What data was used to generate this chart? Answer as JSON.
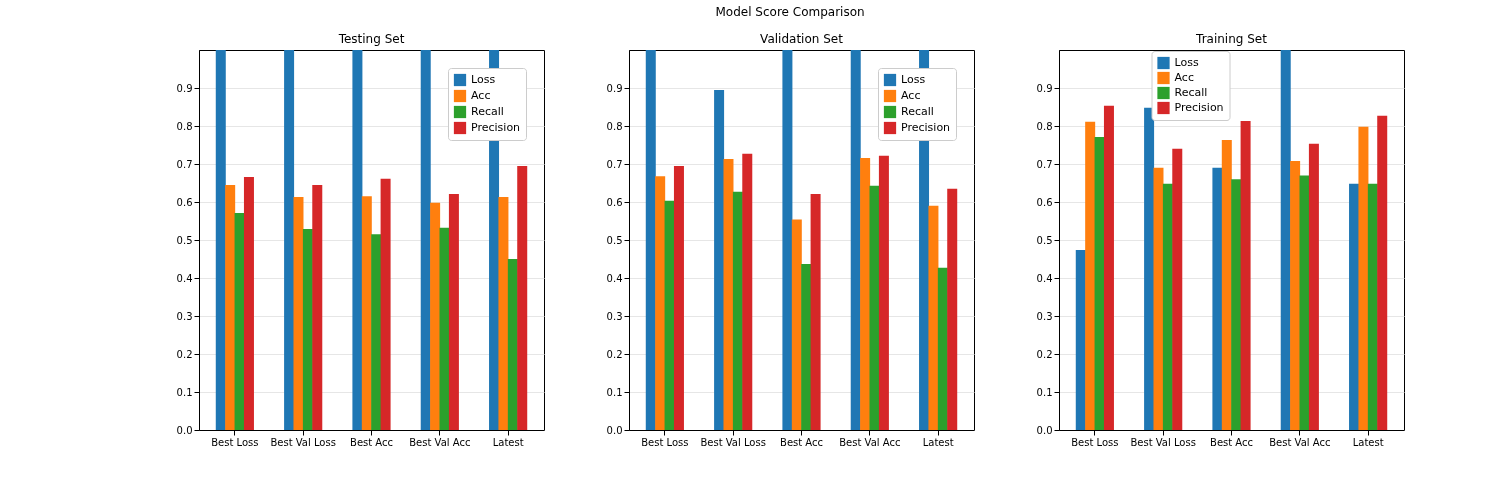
{
  "chart_data": [
    {
      "type": "bar",
      "title": "Testing Set",
      "annotations": [
        "Model Score Comparison"
      ],
      "categories": [
        "Best Loss",
        "Best Val Loss",
        "Best Acc",
        "Best Val Acc",
        "Latest"
      ],
      "series": [
        {
          "name": "Loss",
          "color": "#1f77b4",
          "values": [
            1.0,
            1.0,
            1.0,
            1.0,
            1.0
          ]
        },
        {
          "name": "Acc",
          "color": "#ff7f0e",
          "values": [
            0.645,
            0.613,
            0.615,
            0.598,
            0.613
          ]
        },
        {
          "name": "Recall",
          "color": "#2ca02c",
          "values": [
            0.571,
            0.529,
            0.515,
            0.532,
            0.45
          ]
        },
        {
          "name": "Precision",
          "color": "#d62728",
          "values": [
            0.666,
            0.645,
            0.661,
            0.621,
            0.695
          ]
        }
      ],
      "ylim": [
        0,
        1
      ],
      "yticks": [
        {
          "value": 0,
          "label": "0.0"
        },
        0.1,
        0.2,
        0.3,
        0.4,
        0.5,
        0.6,
        0.7,
        0.8,
        0.9
      ],
      "grid": "y",
      "legend": "top right"
    },
    {
      "type": "bar",
      "title": "Validation Set",
      "categories": [
        "Best Loss",
        "Best Val Loss",
        "Best Acc",
        "Best Val Acc",
        "Latest"
      ],
      "series": [
        {
          "name": "Loss",
          "color": "#1f77b4",
          "values": [
            1.0,
            0.895,
            1.0,
            1.0,
            1.0
          ]
        },
        {
          "name": "Acc",
          "color": "#ff7f0e",
          "values": [
            0.668,
            0.713,
            0.554,
            0.716,
            0.59
          ]
        },
        {
          "name": "Recall",
          "color": "#2ca02c",
          "values": [
            0.603,
            0.627,
            0.437,
            0.643,
            0.427
          ]
        },
        {
          "name": "Precision",
          "color": "#d62728",
          "values": [
            0.695,
            0.727,
            0.621,
            0.722,
            0.635
          ]
        }
      ],
      "ylim": [
        0,
        1
      ],
      "yticks": [
        {
          "value": 0,
          "label": "0.0"
        },
        0.1,
        0.2,
        0.3,
        0.4,
        0.5,
        0.6,
        0.7,
        0.8,
        0.9
      ],
      "grid": "y",
      "legend": "top right"
    },
    {
      "type": "bar",
      "title": "Training Set",
      "categories": [
        "Best Loss",
        "Best Val Loss",
        "Best Acc",
        "Best Val Acc",
        "Latest"
      ],
      "series": [
        {
          "name": "Loss",
          "color": "#1f77b4",
          "values": [
            0.474,
            0.848,
            0.69,
            1.0,
            0.648
          ]
        },
        {
          "name": "Acc",
          "color": "#ff7f0e",
          "values": [
            0.811,
            0.69,
            0.763,
            0.708,
            0.798
          ]
        },
        {
          "name": "Recall",
          "color": "#2ca02c",
          "values": [
            0.771,
            0.648,
            0.66,
            0.67,
            0.648
          ]
        },
        {
          "name": "Precision",
          "color": "#d62728",
          "values": [
            0.853,
            0.74,
            0.813,
            0.753,
            0.827
          ]
        }
      ],
      "ylim": [
        0,
        1
      ],
      "yticks": [
        {
          "value": 0,
          "label": "0.0"
        },
        0.1,
        0.2,
        0.3,
        0.4,
        0.5,
        0.6,
        0.7,
        0.8,
        0.9
      ],
      "grid": "y",
      "legend": "top"
    }
  ]
}
